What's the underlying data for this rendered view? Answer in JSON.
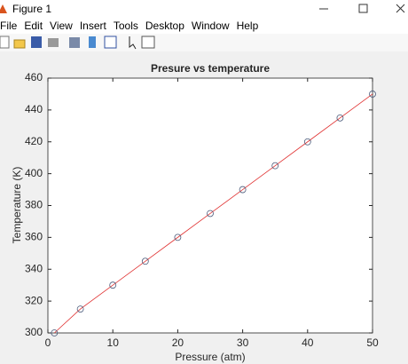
{
  "window": {
    "title": "Figure 1",
    "menu": [
      "File",
      "Edit",
      "View",
      "Insert",
      "Tools",
      "Desktop",
      "Window",
      "Help"
    ]
  },
  "chart_data": {
    "type": "line",
    "title": "Presure vs temperature",
    "x_label": "Pressure (atm)",
    "y_label": "Temperature (K)",
    "x": [
      1,
      5,
      10,
      15,
      20,
      25,
      30,
      35,
      40,
      45,
      50
    ],
    "series": [
      {
        "color": "#e03030",
        "marker": "none",
        "values": [
          300,
          315,
          330,
          345,
          360,
          375,
          390,
          405,
          420,
          435,
          450
        ]
      },
      {
        "color": "#4a5a7a",
        "marker": "circle",
        "values": [
          300,
          315,
          330,
          345,
          360,
          375,
          390,
          405,
          420,
          435,
          450
        ]
      }
    ],
    "xlim": [
      0,
      50
    ],
    "xticks": [
      0,
      10,
      20,
      30,
      40,
      50
    ],
    "ylim": [
      300,
      460
    ],
    "yticks": [
      300,
      320,
      340,
      360,
      380,
      400,
      420,
      440,
      460
    ],
    "grid": false
  }
}
